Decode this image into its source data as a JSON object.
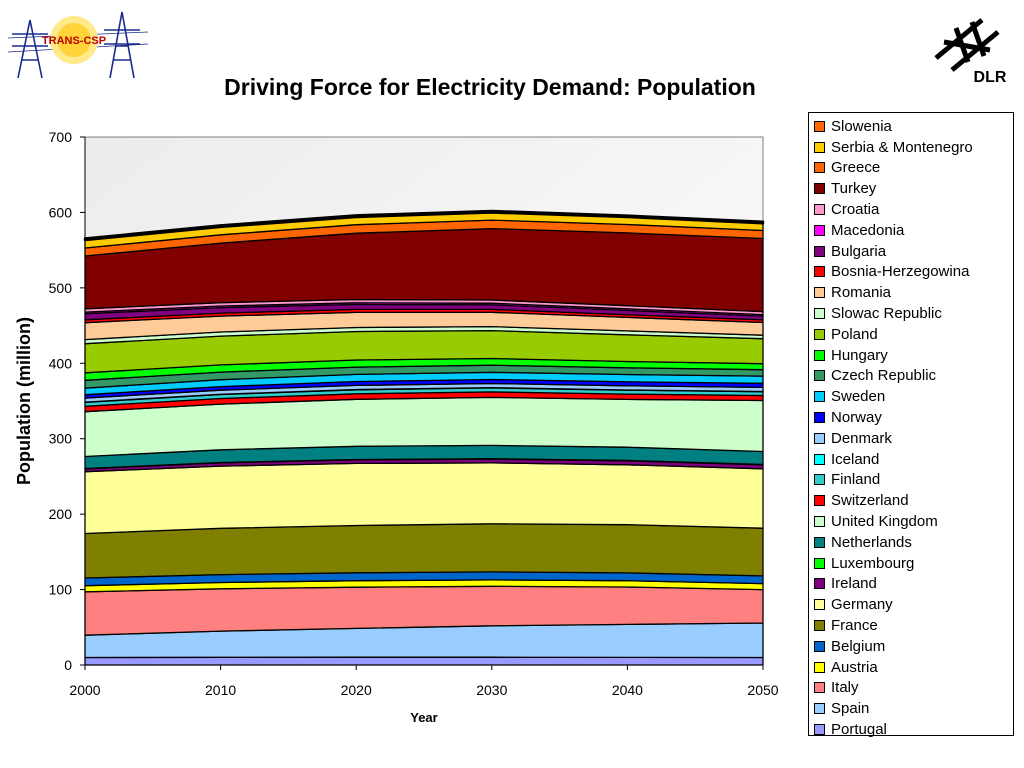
{
  "header": {
    "left_logo_text": "TRANS-CSP",
    "right_logo_text": "DLR"
  },
  "chart_data": {
    "type": "area",
    "stacked": true,
    "title": "Driving Force for Electricity Demand: Population",
    "xlabel": "Year",
    "ylabel": "Population (million)",
    "x": [
      2000,
      2010,
      2020,
      2030,
      2040,
      2050
    ],
    "xlim": [
      2000,
      2050
    ],
    "ylim": [
      0,
      700
    ],
    "yticks": [
      0,
      100,
      200,
      300,
      400,
      500,
      600,
      700
    ],
    "xticks": [
      2000,
      2010,
      2020,
      2030,
      2040,
      2050
    ],
    "grid": false,
    "legend_position": "right",
    "series": [
      {
        "name": "Portugal",
        "color": "#9999ff",
        "values": [
          10,
          10.2,
          10.3,
          10.3,
          10.1,
          9.9
        ]
      },
      {
        "name": "Spain",
        "color": "#99ccff",
        "values": [
          29.5,
          34.7,
          38.2,
          41.7,
          43.7,
          45.8
        ]
      },
      {
        "name": "Italy",
        "color": "#ff8080",
        "values": [
          57.5,
          56.1,
          54.7,
          52.3,
          49.6,
          44.2
        ]
      },
      {
        "name": "Austria",
        "color": "#ffff00",
        "values": [
          8.1,
          8.4,
          8.5,
          8.5,
          8.3,
          8
        ]
      },
      {
        "name": "Belgium",
        "color": "#0066cc",
        "values": [
          10.2,
          10.5,
          10.6,
          10.6,
          10.4,
          10.2
        ]
      },
      {
        "name": "France",
        "color": "#808000",
        "values": [
          59,
          61.3,
          62.7,
          63.8,
          63.9,
          63.2
        ]
      },
      {
        "name": "Germany",
        "color": "#ffff99",
        "values": [
          82,
          82.5,
          82.3,
          80.7,
          79.4,
          78.8
        ]
      },
      {
        "name": "Ireland",
        "color": "#800080",
        "values": [
          3.8,
          4.3,
          4.7,
          5,
          5.2,
          5.3
        ]
      },
      {
        "name": "Luxembourg",
        "color": "#00ff00",
        "values": [
          0.4,
          0.5,
          0.5,
          0.6,
          0.6,
          0.6
        ]
      },
      {
        "name": "Netherlands",
        "color": "#008080",
        "values": [
          15.9,
          16.8,
          17.4,
          17.7,
          17.5,
          17
        ]
      },
      {
        "name": "United Kingdom",
        "color": "#ccffcc",
        "values": [
          59.4,
          60.6,
          62.3,
          63.6,
          63.4,
          67.6
        ]
      },
      {
        "name": "Switzerland",
        "color": "#ff0000",
        "values": [
          7.2,
          7.4,
          7.3,
          7.2,
          7,
          6.7
        ]
      },
      {
        "name": "Finland",
        "color": "#33cccc",
        "values": [
          5.2,
          5.3,
          5.4,
          5.4,
          5.2,
          5
        ]
      },
      {
        "name": "Iceland",
        "color": "#00ffff",
        "values": [
          0.3,
          0.3,
          0.3,
          0.3,
          0.3,
          0.3
        ]
      },
      {
        "name": "Denmark",
        "color": "#99ccff",
        "values": [
          5.3,
          5.4,
          5.5,
          5.5,
          5.5,
          5.4
        ]
      },
      {
        "name": "Norway",
        "color": "#0000ff",
        "values": [
          4.5,
          4.8,
          5.1,
          5.3,
          5.4,
          5.5
        ]
      },
      {
        "name": "Sweden",
        "color": "#00ccff",
        "values": [
          8.8,
          9.1,
          9.4,
          9.6,
          9.6,
          9.5
        ]
      },
      {
        "name": "Czech Republic",
        "color": "#339966",
        "values": [
          10.3,
          10.1,
          9.8,
          9.4,
          8.9,
          8.5
        ]
      },
      {
        "name": "Hungary",
        "color": "#00ff00",
        "values": [
          10,
          9.6,
          9.3,
          8.9,
          8.4,
          7.9
        ]
      },
      {
        "name": "Poland",
        "color": "#99cc00",
        "values": [
          38.6,
          38.2,
          37.8,
          36.9,
          35.4,
          33.2
        ]
      },
      {
        "name": "Slowac Republic",
        "color": "#ccffcc",
        "values": [
          5.4,
          5.4,
          5.4,
          5.3,
          5.1,
          4.7
        ]
      },
      {
        "name": "Romania",
        "color": "#ffcc99",
        "values": [
          22.4,
          21.1,
          20,
          19,
          17.9,
          16.8
        ]
      },
      {
        "name": "Bosnia-Herzegowina",
        "color": "#ff0000",
        "values": [
          3.9,
          3.9,
          3.9,
          3.8,
          3.6,
          3.4
        ]
      },
      {
        "name": "Bulgaria",
        "color": "#800080",
        "values": [
          8.1,
          7.3,
          6.7,
          6.2,
          5.7,
          5.1
        ]
      },
      {
        "name": "Macedonia",
        "color": "#ff00ff",
        "values": [
          2,
          2.1,
          2.1,
          2.1,
          2.1,
          2
        ]
      },
      {
        "name": "Croatia",
        "color": "#ff99cc",
        "values": [
          4.5,
          4.4,
          4.3,
          4.2,
          4.1,
          3.9
        ]
      },
      {
        "name": "Turkey",
        "color": "#800000",
        "values": [
          70,
          79,
          88,
          94.7,
          96.6,
          97
        ]
      },
      {
        "name": "Greece",
        "color": "#ff6600",
        "values": [
          10.6,
          11,
          11.2,
          11.2,
          11.1,
          10.6
        ]
      },
      {
        "name": "Serbia & Montenegro",
        "color": "#ffcc00",
        "values": [
          10.6,
          10.5,
          10.3,
          10.1,
          9.9,
          9.6
        ]
      },
      {
        "name": "Slowenia",
        "color": "#ff6600",
        "values": [
          2,
          2,
          2,
          2,
          1.9,
          1.9
        ]
      }
    ]
  }
}
